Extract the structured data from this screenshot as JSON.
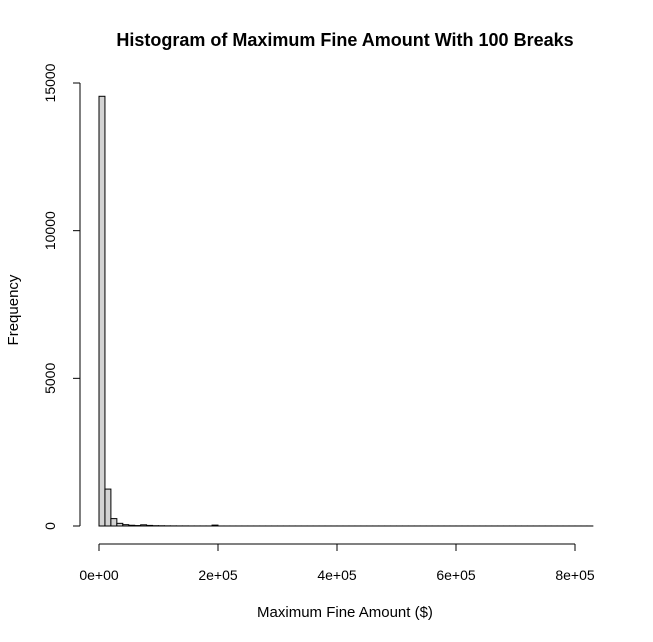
{
  "chart_data": {
    "type": "bar",
    "title": "Histogram of Maximum Fine Amount With 100 Breaks",
    "xlabel": "Maximum Fine Amount ($)",
    "ylabel": "Frequency",
    "xlim": [
      0,
      830000
    ],
    "ylim": [
      0,
      15000
    ],
    "x_ticks": [
      {
        "value": 0,
        "label": "0e+00"
      },
      {
        "value": 200000,
        "label": "2e+05"
      },
      {
        "value": 400000,
        "label": "4e+05"
      },
      {
        "value": 600000,
        "label": "6e+05"
      },
      {
        "value": 800000,
        "label": "8e+05"
      }
    ],
    "y_ticks": [
      {
        "value": 0,
        "label": "0"
      },
      {
        "value": 5000,
        "label": "5000"
      },
      {
        "value": 10000,
        "label": "10000"
      },
      {
        "value": 15000,
        "label": "15000"
      }
    ],
    "bin_width": 10000,
    "bin_start": 0,
    "bin_counts": [
      14550,
      1250,
      250,
      90,
      45,
      25,
      15,
      40,
      20,
      10,
      8,
      5,
      4,
      3,
      3,
      2,
      2,
      2,
      2,
      30,
      1,
      1,
      1,
      1,
      1,
      1,
      1,
      1,
      1,
      1,
      1,
      1,
      1,
      1,
      1,
      1,
      1,
      1,
      1,
      1,
      1,
      1,
      1,
      1,
      1,
      1,
      1,
      1,
      1,
      1,
      1,
      1,
      1,
      1,
      1,
      1,
      1,
      1,
      1,
      1,
      1,
      1,
      1,
      1,
      1,
      1,
      1,
      1,
      1,
      1,
      1,
      1,
      1,
      1,
      1,
      1,
      1,
      1,
      1,
      1,
      1,
      1,
      1
    ],
    "bar_fill": "#d3d3d3",
    "bar_stroke": "#000000",
    "grid": false
  }
}
